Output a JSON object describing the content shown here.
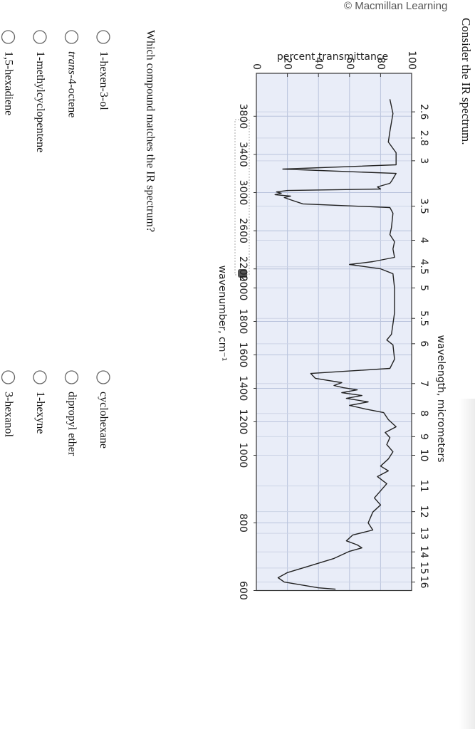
{
  "header": {
    "credit": "© Macmillan Learning",
    "prompt": "Consider the IR spectrum."
  },
  "chart_data": {
    "type": "line",
    "x_title_top": "wavelength, micrometers",
    "xlabel": "wavenumber, cm⁻¹",
    "ylabel": "percent transmittance",
    "color": "#222222",
    "grid": true,
    "x": [
      3978,
      3828,
      3642,
      3530,
      3418,
      3291,
      3246,
      3201,
      3119,
      3097,
      3060,
      3037,
      3022,
      3007,
      2993,
      2978,
      2963,
      2948,
      2925,
      2881,
      2843,
      2784,
      2634,
      2560,
      2485,
      2410,
      2321,
      2276,
      2246,
      2201,
      2149,
      2000,
      1851,
      1723,
      1689,
      1660,
      1574,
      1519,
      1489,
      1460,
      1434,
      1417,
      1404,
      1391,
      1374,
      1357,
      1340,
      1319,
      1298,
      1277,
      1255,
      1213,
      1170,
      1136,
      1106,
      1064,
      1021,
      989,
      968,
      954,
      937,
      916,
      895,
      874,
      853,
      832,
      800,
      779,
      764,
      747,
      735,
      726,
      716,
      695,
      674,
      653,
      638,
      625,
      608,
      604
    ],
    "values": [
      86,
      88,
      86,
      85,
      90,
      90,
      17,
      90,
      87,
      86,
      78,
      80,
      20,
      13,
      16,
      12,
      22,
      18,
      22,
      30,
      86,
      88,
      87,
      86,
      89,
      88,
      89,
      75,
      60,
      80,
      88,
      89,
      89,
      87,
      84,
      88,
      89,
      86,
      35,
      38,
      55,
      50,
      56,
      65,
      55,
      68,
      58,
      72,
      60,
      70,
      82,
      85,
      90,
      83,
      86,
      84,
      88,
      85,
      80,
      85,
      78,
      84,
      80,
      76,
      80,
      75,
      72,
      75,
      62,
      58,
      65,
      68,
      60,
      50,
      35,
      20,
      14,
      18,
      40,
      51
    ],
    "xlim": [
      4250,
      600
    ],
    "xticks": [
      3800,
      3400,
      3000,
      2600,
      2200,
      2000,
      1800,
      1600,
      1400,
      1200,
      1000,
      800,
      600
    ],
    "x2ticks": [
      2.6,
      2.8,
      3,
      3.5,
      4,
      4.5,
      5,
      5.5,
      6,
      7,
      8,
      9,
      10,
      11,
      12,
      13,
      14,
      15,
      16
    ],
    "ylim": [
      0,
      100
    ],
    "yticks": [
      0,
      20,
      40,
      60,
      80,
      100
    ]
  },
  "question": {
    "text": "Which compound matches the IR spectrum?",
    "options": [
      {
        "label": "1-hexen-3-ol"
      },
      {
        "italic": "trans",
        "label": "-4-octene"
      },
      {
        "label": "1-methylcyclopentene"
      },
      {
        "label": "1,5-hexadiene"
      },
      {
        "label": "cyclohexane"
      },
      {
        "label": "dipropyl ether"
      },
      {
        "label": "1-hexyne"
      },
      {
        "label": "3-hexanol"
      }
    ]
  }
}
